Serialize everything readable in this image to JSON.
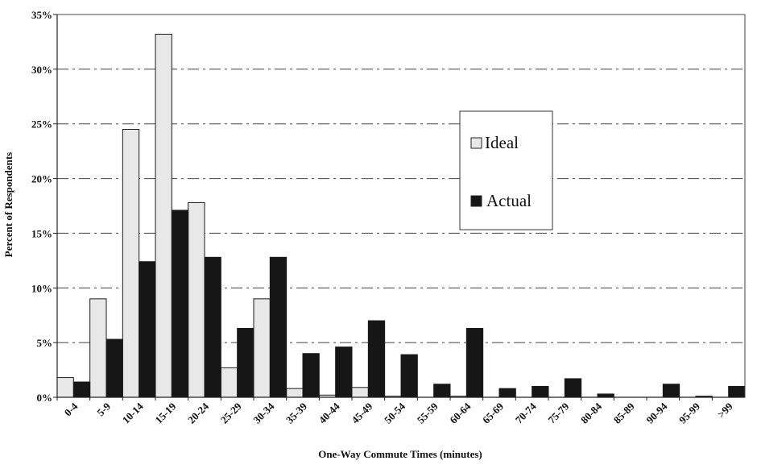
{
  "chart_data": {
    "type": "bar",
    "xlabel": "One-Way Commute Times (minutes)",
    "ylabel": "Percent of Respondents",
    "ylim": [
      0,
      35
    ],
    "yticks": [
      "0%",
      "5%",
      "10%",
      "15%",
      "20%",
      "25%",
      "30%",
      "35%"
    ],
    "grid": true,
    "legend_position": "right",
    "categories": [
      "0-4",
      "5-9",
      "10-14",
      "15-19",
      "20-24",
      "25-29",
      "30-34",
      "35-39",
      "40-44",
      "45-49",
      "50-54",
      "55-59",
      "60-64",
      "65-69",
      "70-74",
      "75-79",
      "80-84",
      "85-89",
      "90-94",
      "95-99",
      ">99"
    ],
    "series": [
      {
        "name": "Ideal",
        "color": "#e8e8e8",
        "values": [
          1.8,
          9.0,
          24.5,
          33.2,
          17.8,
          2.7,
          9.0,
          0.8,
          0.2,
          0.9,
          0.1,
          0.0,
          0.1,
          0.0,
          0.0,
          0.0,
          0.0,
          0.0,
          0.0,
          0.0,
          0.0
        ]
      },
      {
        "name": "Actual",
        "color": "#161616",
        "values": [
          1.4,
          5.3,
          12.4,
          17.1,
          12.8,
          6.3,
          12.8,
          4.0,
          4.6,
          7.0,
          3.9,
          1.2,
          6.3,
          0.8,
          1.0,
          1.7,
          0.3,
          0.0,
          1.2,
          0.1,
          1.0
        ]
      }
    ]
  }
}
